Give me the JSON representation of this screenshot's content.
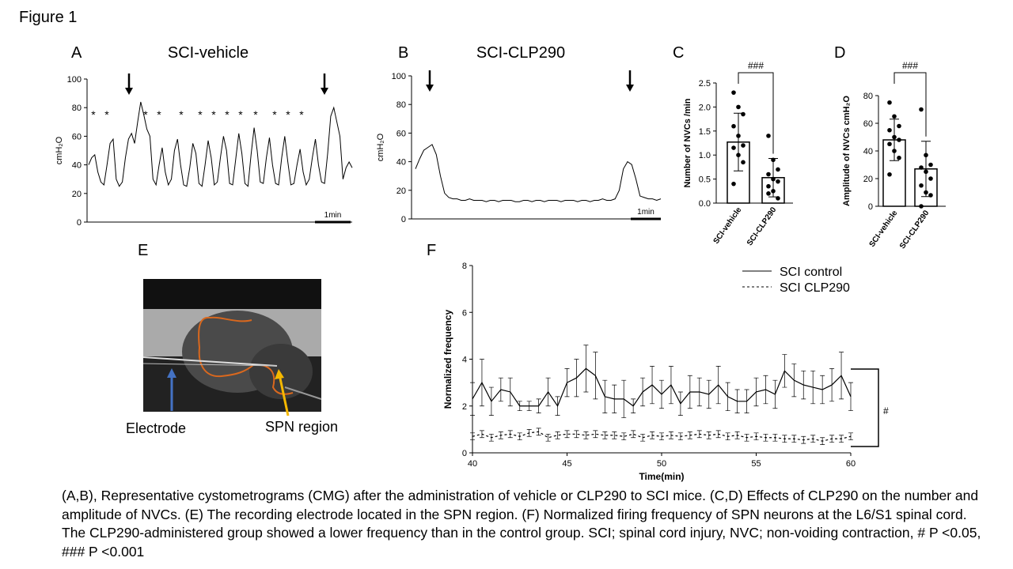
{
  "figure_title": "Figure 1",
  "panel_labels": [
    "A",
    "B",
    "C",
    "D",
    "E",
    "F"
  ],
  "image_panel": {
    "labels": [
      "Electrode",
      "SPN region"
    ]
  },
  "caption": "(A,B), Representative cystometrograms (CMG) after the administration of vehicle or CLP290 to SCI mice. (C,D) Effects of CLP290 on the number and amplitude of NVCs. (E) The recording electrode located in the SPN region. (F) Normalized firing frequency of SPN neurons at the L6/S1 spinal cord. The CLP290-administered group showed a lower frequency than in the control group. SCI; spinal cord injury, NVC; non-voiding contraction, # P <0.05, ### P <0.001",
  "chart_data": [
    {
      "type": "line",
      "title": "SCI-vehicle",
      "ylabel": "cmH₂O",
      "ylim": [
        0,
        100
      ],
      "yticks": [
        0,
        20,
        40,
        60,
        80,
        100
      ],
      "color": "#000000",
      "scale_bar": "1min",
      "annotations": [
        "*",
        "*",
        "*",
        "*",
        "*",
        "*",
        "*",
        "*",
        "*",
        "*",
        "*",
        "*",
        "*"
      ],
      "values": [
        40,
        45,
        47,
        35,
        28,
        26,
        40,
        55,
        58,
        30,
        25,
        28,
        45,
        58,
        62,
        55,
        70,
        84,
        75,
        65,
        60,
        30,
        26,
        40,
        52,
        35,
        26,
        30,
        50,
        58,
        40,
        26,
        25,
        38,
        55,
        48,
        27,
        25,
        40,
        57,
        45,
        26,
        28,
        45,
        60,
        50,
        27,
        26,
        44,
        62,
        48,
        27,
        25,
        47,
        66,
        50,
        28,
        27,
        45,
        59,
        40,
        27,
        26,
        45,
        60,
        42,
        26,
        27,
        40,
        51,
        35,
        26,
        30,
        45,
        58,
        40,
        28,
        27,
        48,
        74,
        80,
        70,
        60,
        30,
        38,
        42,
        38
      ]
    },
    {
      "type": "line",
      "title": "SCI-CLP290",
      "ylabel": "cmH₂O",
      "ylim": [
        0,
        100
      ],
      "yticks": [
        0,
        20,
        40,
        60,
        80,
        100
      ],
      "color": "#000000",
      "scale_bar": "1min",
      "values": [
        35,
        42,
        48,
        50,
        52,
        45,
        30,
        18,
        15,
        14,
        14,
        13,
        13,
        14,
        13,
        13,
        13,
        12,
        13,
        13,
        12,
        13,
        13,
        13,
        12,
        12,
        13,
        13,
        12,
        13,
        13,
        12,
        13,
        13,
        13,
        12,
        13,
        13,
        13,
        12,
        13,
        13,
        12,
        13,
        13,
        14,
        13,
        13,
        14,
        20,
        35,
        40,
        38,
        28,
        16,
        15,
        14,
        14,
        13,
        14
      ]
    },
    {
      "type": "bar",
      "ylabel": "Number of NVCs /min",
      "categories": [
        "SCI-vehicle",
        "SCI-CLP290"
      ],
      "values": [
        1.27,
        0.53
      ],
      "errors": [
        0.6,
        0.4
      ],
      "color": "#ffffff",
      "annotation": "###",
      "points": [
        [
          2.3,
          2.0,
          1.85,
          1.6,
          1.4,
          1.2,
          1.15,
          1.0,
          0.85,
          0.4
        ],
        [
          1.4,
          0.9,
          0.7,
          0.6,
          0.5,
          0.45,
          0.35,
          0.25,
          0.1,
          0.2
        ]
      ],
      "ylim": [
        0,
        2.5
      ],
      "yticks": [
        {
          "value": 0,
          "label": "0.0"
        },
        0.5,
        {
          "value": 1,
          "label": "1.0"
        },
        1.5,
        {
          "value": 2,
          "label": "2.0"
        },
        2.5
      ]
    },
    {
      "type": "bar",
      "ylabel": "Amplitude of NVCs cmH₂O",
      "categories": [
        "SCI-vehicle",
        "SCI-CLP290"
      ],
      "values": [
        48,
        27
      ],
      "errors": [
        15,
        20
      ],
      "color": "#ffffff",
      "annotation": "###",
      "points": [
        [
          75,
          65,
          58,
          55,
          50,
          48,
          45,
          40,
          35,
          23
        ],
        [
          70,
          37,
          30,
          28,
          25,
          20,
          15,
          10,
          8,
          0
        ]
      ],
      "ylim": [
        0,
        80
      ],
      "yticks": [
        0,
        20,
        40,
        60,
        80
      ]
    },
    {
      "type": "line",
      "xlabel": "Time(min)",
      "ylabel": "Normalized frequency",
      "annotation": "#",
      "x": [
        40,
        40.5,
        41,
        41.5,
        42,
        42.5,
        43,
        43.5,
        44,
        44.5,
        45,
        45.5,
        46,
        46.5,
        47,
        47.5,
        48,
        48.5,
        49,
        49.5,
        50,
        50.5,
        51,
        51.5,
        52,
        52.5,
        53,
        53.5,
        54,
        54.5,
        55,
        55.5,
        56,
        56.5,
        57,
        57.5,
        58,
        58.5,
        59,
        59.5,
        60
      ],
      "xlim": [
        40,
        60
      ],
      "xticks": [
        40,
        45,
        50,
        55,
        60
      ],
      "ylim": [
        0,
        8
      ],
      "yticks": [
        0,
        2,
        4,
        6,
        8
      ],
      "series": [
        {
          "name": "SCI control",
          "color": "#000000",
          "dashed": false,
          "values": [
            2.3,
            3.0,
            2.2,
            2.7,
            2.6,
            2.0,
            2.0,
            2.0,
            2.6,
            2.0,
            3.0,
            3.2,
            3.6,
            3.3,
            2.4,
            2.3,
            2.3,
            2.0,
            2.6,
            2.9,
            2.5,
            2.9,
            2.1,
            2.6,
            2.6,
            2.5,
            2.9,
            2.4,
            2.2,
            2.2,
            2.6,
            2.7,
            2.5,
            3.5,
            3.1,
            2.9,
            2.8,
            2.7,
            2.9,
            3.3,
            2.4
          ],
          "errors": [
            0.7,
            1.0,
            0.6,
            0.5,
            0.6,
            0.2,
            0.2,
            0.3,
            0.6,
            0.4,
            0.6,
            0.8,
            1.0,
            1.0,
            0.7,
            0.6,
            0.8,
            0.3,
            0.6,
            0.8,
            0.6,
            0.8,
            0.5,
            0.7,
            0.6,
            0.6,
            0.8,
            0.6,
            0.5,
            0.5,
            0.6,
            0.6,
            0.6,
            0.7,
            0.7,
            0.6,
            0.7,
            0.6,
            0.7,
            1.0,
            0.6
          ]
        },
        {
          "name": "SCI CLP290",
          "color": "#000000",
          "dashed": true,
          "values": [
            0.7,
            0.8,
            0.65,
            0.75,
            0.8,
            0.7,
            0.85,
            0.9,
            0.65,
            0.75,
            0.8,
            0.8,
            0.75,
            0.8,
            0.75,
            0.75,
            0.7,
            0.8,
            0.65,
            0.75,
            0.7,
            0.75,
            0.7,
            0.75,
            0.8,
            0.75,
            0.8,
            0.7,
            0.75,
            0.65,
            0.7,
            0.65,
            0.65,
            0.6,
            0.6,
            0.55,
            0.6,
            0.5,
            0.6,
            0.6,
            0.7
          ],
          "errors": [
            0.15,
            0.15,
            0.15,
            0.15,
            0.15,
            0.15,
            0.15,
            0.15,
            0.15,
            0.15,
            0.15,
            0.15,
            0.15,
            0.15,
            0.15,
            0.15,
            0.15,
            0.15,
            0.15,
            0.15,
            0.15,
            0.15,
            0.15,
            0.15,
            0.15,
            0.15,
            0.15,
            0.15,
            0.15,
            0.15,
            0.15,
            0.15,
            0.15,
            0.15,
            0.15,
            0.15,
            0.15,
            0.15,
            0.15,
            0.15,
            0.15
          ]
        }
      ]
    }
  ]
}
